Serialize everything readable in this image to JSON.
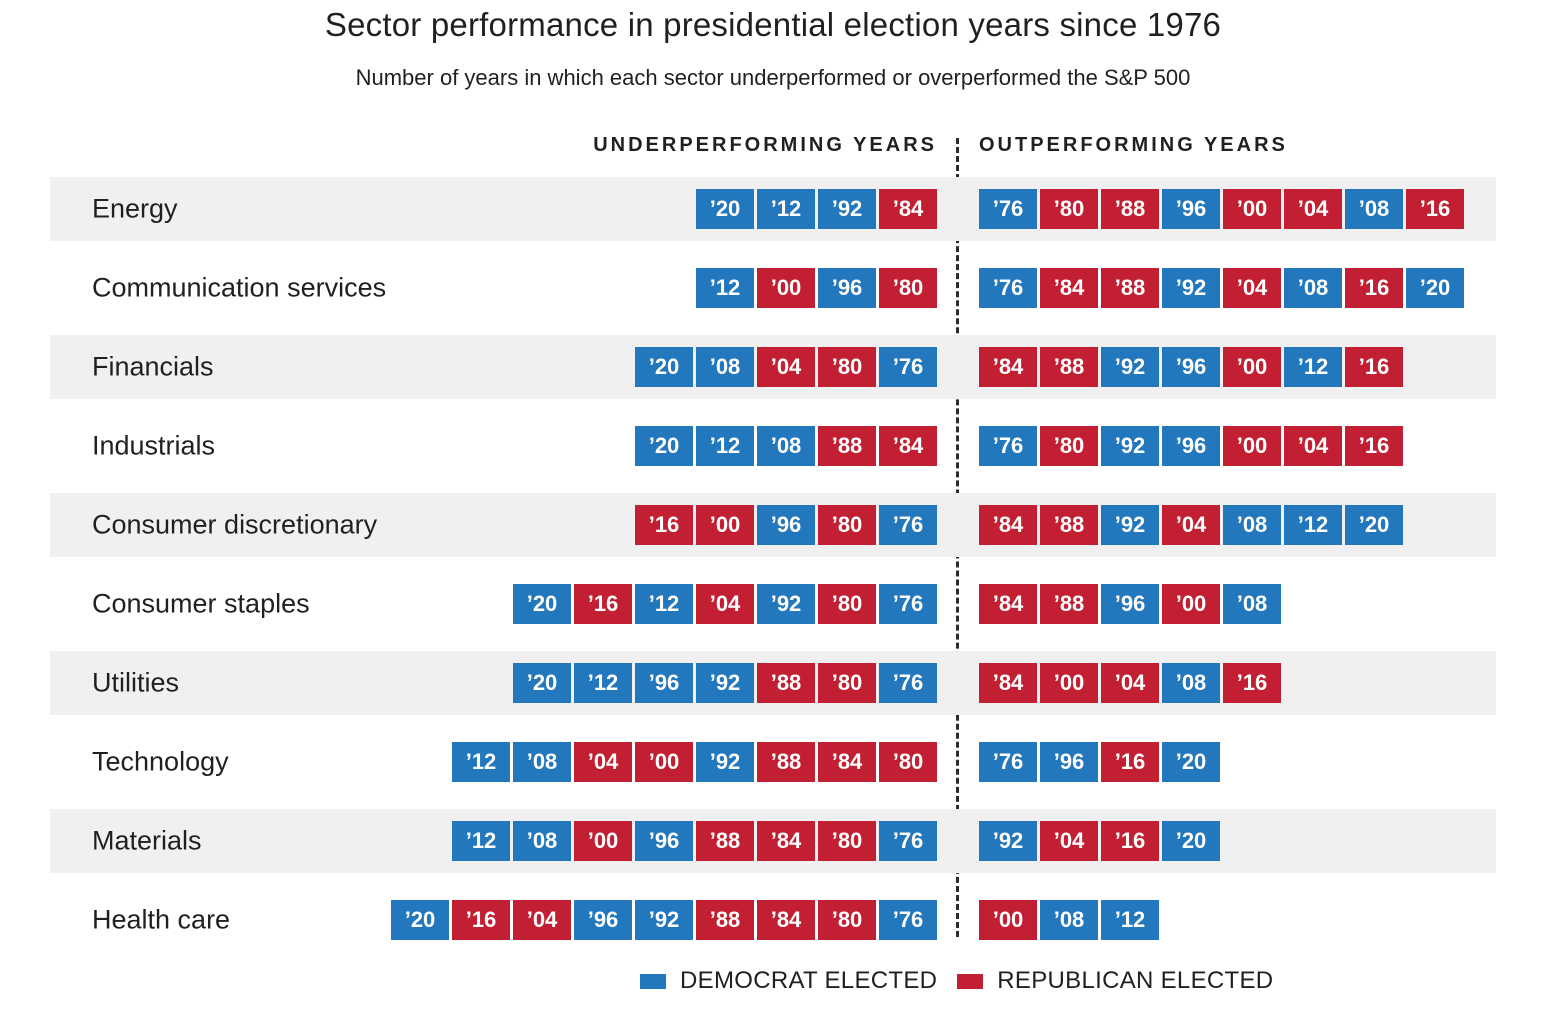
{
  "title": "Sector performance in presidential election years since 1976",
  "subtitle": "Number of years in which each sector underperformed or overperformed the S&P 500",
  "column_headers": {
    "underperforming": "UNDERPERFORMING YEARS",
    "outperforming": "OUTPERFORMING YEARS"
  },
  "colors": {
    "democrat": "#2377bd",
    "republican": "#c22032",
    "row_stripe": "#f0f0f0"
  },
  "legend": {
    "democrat_label": "DEMOCRAT ELECTED",
    "republican_label": "REPUBLICAN ELECTED"
  },
  "chart_data": {
    "type": "table",
    "party_key": {
      "D": "Democrat elected",
      "R": "Republican elected"
    },
    "rows": [
      {
        "sector": "Energy",
        "underperforming": [
          {
            "year": "’20",
            "party": "D"
          },
          {
            "year": "’12",
            "party": "D"
          },
          {
            "year": "’92",
            "party": "D"
          },
          {
            "year": "’84",
            "party": "R"
          }
        ],
        "outperforming": [
          {
            "year": "’76",
            "party": "D"
          },
          {
            "year": "’80",
            "party": "R"
          },
          {
            "year": "’88",
            "party": "R"
          },
          {
            "year": "’96",
            "party": "D"
          },
          {
            "year": "’00",
            "party": "R"
          },
          {
            "year": "’04",
            "party": "R"
          },
          {
            "year": "’08",
            "party": "D"
          },
          {
            "year": "’16",
            "party": "R"
          }
        ]
      },
      {
        "sector": "Communication services",
        "underperforming": [
          {
            "year": "’12",
            "party": "D"
          },
          {
            "year": "’00",
            "party": "R"
          },
          {
            "year": "’96",
            "party": "D"
          },
          {
            "year": "’80",
            "party": "R"
          }
        ],
        "outperforming": [
          {
            "year": "’76",
            "party": "D"
          },
          {
            "year": "’84",
            "party": "R"
          },
          {
            "year": "’88",
            "party": "R"
          },
          {
            "year": "’92",
            "party": "D"
          },
          {
            "year": "’04",
            "party": "R"
          },
          {
            "year": "’08",
            "party": "D"
          },
          {
            "year": "’16",
            "party": "R"
          },
          {
            "year": "’20",
            "party": "D"
          }
        ]
      },
      {
        "sector": "Financials",
        "underperforming": [
          {
            "year": "’20",
            "party": "D"
          },
          {
            "year": "’08",
            "party": "D"
          },
          {
            "year": "’04",
            "party": "R"
          },
          {
            "year": "’80",
            "party": "R"
          },
          {
            "year": "’76",
            "party": "D"
          }
        ],
        "outperforming": [
          {
            "year": "’84",
            "party": "R"
          },
          {
            "year": "’88",
            "party": "R"
          },
          {
            "year": "’92",
            "party": "D"
          },
          {
            "year": "’96",
            "party": "D"
          },
          {
            "year": "’00",
            "party": "R"
          },
          {
            "year": "’12",
            "party": "D"
          },
          {
            "year": "’16",
            "party": "R"
          }
        ]
      },
      {
        "sector": "Industrials",
        "underperforming": [
          {
            "year": "’20",
            "party": "D"
          },
          {
            "year": "’12",
            "party": "D"
          },
          {
            "year": "’08",
            "party": "D"
          },
          {
            "year": "’88",
            "party": "R"
          },
          {
            "year": "’84",
            "party": "R"
          }
        ],
        "outperforming": [
          {
            "year": "’76",
            "party": "D"
          },
          {
            "year": "’80",
            "party": "R"
          },
          {
            "year": "’92",
            "party": "D"
          },
          {
            "year": "’96",
            "party": "D"
          },
          {
            "year": "’00",
            "party": "R"
          },
          {
            "year": "’04",
            "party": "R"
          },
          {
            "year": "’16",
            "party": "R"
          }
        ]
      },
      {
        "sector": "Consumer discretionary",
        "underperforming": [
          {
            "year": "’16",
            "party": "R"
          },
          {
            "year": "’00",
            "party": "R"
          },
          {
            "year": "’96",
            "party": "D"
          },
          {
            "year": "’80",
            "party": "R"
          },
          {
            "year": "’76",
            "party": "D"
          }
        ],
        "outperforming": [
          {
            "year": "’84",
            "party": "R"
          },
          {
            "year": "’88",
            "party": "R"
          },
          {
            "year": "’92",
            "party": "D"
          },
          {
            "year": "’04",
            "party": "R"
          },
          {
            "year": "’08",
            "party": "D"
          },
          {
            "year": "’12",
            "party": "D"
          },
          {
            "year": "’20",
            "party": "D"
          }
        ]
      },
      {
        "sector": "Consumer staples",
        "underperforming": [
          {
            "year": "’20",
            "party": "D"
          },
          {
            "year": "’16",
            "party": "R"
          },
          {
            "year": "’12",
            "party": "D"
          },
          {
            "year": "’04",
            "party": "R"
          },
          {
            "year": "’92",
            "party": "D"
          },
          {
            "year": "’80",
            "party": "R"
          },
          {
            "year": "’76",
            "party": "D"
          }
        ],
        "outperforming": [
          {
            "year": "’84",
            "party": "R"
          },
          {
            "year": "’88",
            "party": "R"
          },
          {
            "year": "’96",
            "party": "D"
          },
          {
            "year": "’00",
            "party": "R"
          },
          {
            "year": "’08",
            "party": "D"
          }
        ]
      },
      {
        "sector": "Utilities",
        "underperforming": [
          {
            "year": "’20",
            "party": "D"
          },
          {
            "year": "’12",
            "party": "D"
          },
          {
            "year": "’96",
            "party": "D"
          },
          {
            "year": "’92",
            "party": "D"
          },
          {
            "year": "’88",
            "party": "R"
          },
          {
            "year": "’80",
            "party": "R"
          },
          {
            "year": "’76",
            "party": "D"
          }
        ],
        "outperforming": [
          {
            "year": "’84",
            "party": "R"
          },
          {
            "year": "’00",
            "party": "R"
          },
          {
            "year": "’04",
            "party": "R"
          },
          {
            "year": "’08",
            "party": "D"
          },
          {
            "year": "’16",
            "party": "R"
          }
        ]
      },
      {
        "sector": "Technology",
        "underperforming": [
          {
            "year": "’12",
            "party": "D"
          },
          {
            "year": "’08",
            "party": "D"
          },
          {
            "year": "’04",
            "party": "R"
          },
          {
            "year": "’00",
            "party": "R"
          },
          {
            "year": "’92",
            "party": "D"
          },
          {
            "year": "’88",
            "party": "R"
          },
          {
            "year": "’84",
            "party": "R"
          },
          {
            "year": "’80",
            "party": "R"
          }
        ],
        "outperforming": [
          {
            "year": "’76",
            "party": "D"
          },
          {
            "year": "’96",
            "party": "D"
          },
          {
            "year": "’16",
            "party": "R"
          },
          {
            "year": "’20",
            "party": "D"
          }
        ]
      },
      {
        "sector": "Materials",
        "underperforming": [
          {
            "year": "’12",
            "party": "D"
          },
          {
            "year": "’08",
            "party": "D"
          },
          {
            "year": "’00",
            "party": "R"
          },
          {
            "year": "’96",
            "party": "D"
          },
          {
            "year": "’88",
            "party": "R"
          },
          {
            "year": "’84",
            "party": "R"
          },
          {
            "year": "’80",
            "party": "R"
          },
          {
            "year": "’76",
            "party": "D"
          }
        ],
        "outperforming": [
          {
            "year": "’92",
            "party": "D"
          },
          {
            "year": "’04",
            "party": "R"
          },
          {
            "year": "’16",
            "party": "R"
          },
          {
            "year": "’20",
            "party": "D"
          }
        ]
      },
      {
        "sector": "Health care",
        "underperforming": [
          {
            "year": "’20",
            "party": "D"
          },
          {
            "year": "’16",
            "party": "R"
          },
          {
            "year": "’04",
            "party": "R"
          },
          {
            "year": "’96",
            "party": "D"
          },
          {
            "year": "’92",
            "party": "D"
          },
          {
            "year": "’88",
            "party": "R"
          },
          {
            "year": "’84",
            "party": "R"
          },
          {
            "year": "’80",
            "party": "R"
          },
          {
            "year": "’76",
            "party": "D"
          }
        ],
        "outperforming": [
          {
            "year": "’00",
            "party": "R"
          },
          {
            "year": "’08",
            "party": "D"
          },
          {
            "year": "’12",
            "party": "D"
          }
        ]
      }
    ]
  }
}
